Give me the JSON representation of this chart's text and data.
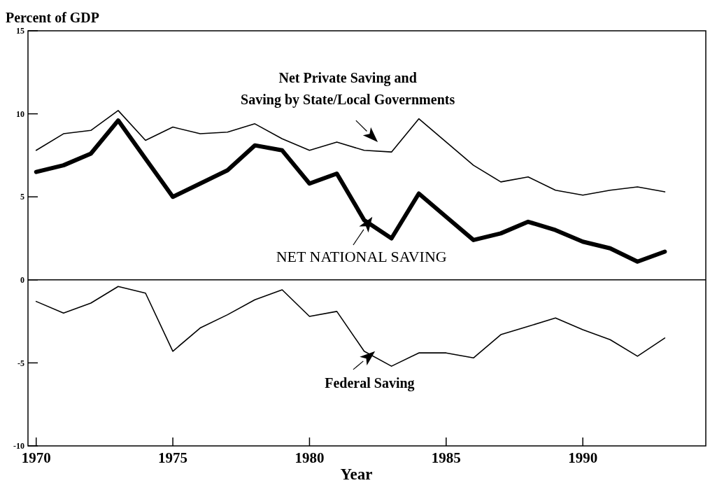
{
  "chart_data": {
    "type": "line",
    "ylabel": "Percent of GDP",
    "xlabel": "Year",
    "x": [
      1970,
      1971,
      1972,
      1973,
      1974,
      1975,
      1976,
      1977,
      1978,
      1979,
      1980,
      1981,
      1982,
      1983,
      1984,
      1985,
      1986,
      1987,
      1988,
      1989,
      1990,
      1991,
      1992,
      1993
    ],
    "series": [
      {
        "name": "Net Private Saving and Saving by State/Local Governments",
        "color": "#000000",
        "values": [
          7.8,
          8.8,
          9.0,
          10.2,
          8.4,
          9.2,
          8.8,
          8.9,
          9.4,
          8.5,
          7.8,
          8.3,
          7.8,
          7.7,
          9.7,
          8.3,
          6.9,
          5.9,
          6.2,
          5.4,
          5.1,
          5.4,
          5.6,
          5.3
        ]
      },
      {
        "name": "NET NATIONAL SAVING",
        "color": "#000000",
        "values": [
          6.5,
          6.9,
          7.6,
          9.6,
          7.3,
          5.0,
          5.8,
          6.6,
          8.1,
          7.8,
          5.8,
          6.4,
          3.6,
          2.5,
          5.2,
          3.8,
          2.4,
          2.8,
          3.5,
          3.0,
          2.3,
          1.9,
          1.1,
          1.7
        ]
      },
      {
        "name": "Federal Saving",
        "color": "#000000",
        "values": [
          -1.3,
          -2.0,
          -1.4,
          -0.4,
          -0.8,
          -4.3,
          -2.9,
          -2.1,
          -1.2,
          -0.6,
          -2.2,
          -1.9,
          -4.3,
          -5.2,
          -4.4,
          -4.4,
          -4.7,
          -3.3,
          -2.8,
          -2.3,
          -3.0,
          -3.6,
          -4.6,
          -3.5
        ]
      }
    ],
    "xlim": [
      1969.7,
      1994.5
    ],
    "ylim": [
      -10,
      15
    ],
    "xticks": [
      1970,
      1975,
      1980,
      1985,
      1990
    ],
    "yticks": [
      -10,
      -5,
      0,
      5,
      10,
      15
    ],
    "ref_lines": [
      {
        "axis": "y",
        "value": 0,
        "color": "#000000"
      }
    ],
    "grid": false,
    "legend": "center",
    "marker": "none",
    "line_style": "solid"
  }
}
